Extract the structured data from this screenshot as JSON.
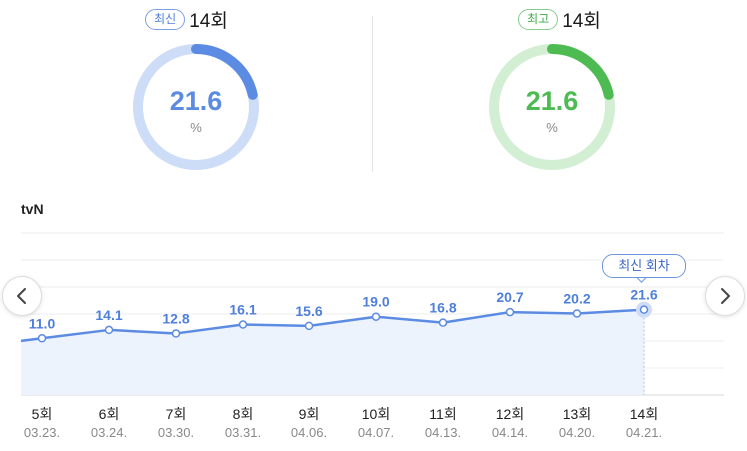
{
  "latest": {
    "badge": "최신",
    "episode": "14회",
    "value": "21.6",
    "unit": "%",
    "ratio": 0.216
  },
  "highest": {
    "badge": "최고",
    "episode": "14회",
    "value": "21.6",
    "unit": "%",
    "ratio": 0.216
  },
  "network": "tvN",
  "latest_tag": "최신 회차",
  "colors": {
    "blue": "#5b8be3",
    "blue_light": "#cddcf7",
    "green": "#4dbb52",
    "green_light": "#d2efd3",
    "area": "#edf3fd",
    "grid": "#ececec"
  },
  "icons": {
    "prev": "chevron-left-icon",
    "next": "chevron-right-icon"
  },
  "chart_data": {
    "type": "line",
    "categories": [
      "5회",
      "6회",
      "7회",
      "8회",
      "9회",
      "10회",
      "11회",
      "12회",
      "13회",
      "14회"
    ],
    "dates": [
      "03.23.",
      "03.24.",
      "03.30.",
      "03.31.",
      "04.06.",
      "04.07.",
      "04.13.",
      "04.14.",
      "04.20.",
      "04.21."
    ],
    "series": [
      {
        "values": [
          11.0,
          14.1,
          12.8,
          16.1,
          15.6,
          19.0,
          16.8,
          20.7,
          20.2,
          21.6
        ]
      }
    ],
    "labels": [
      "11.0",
      "14.1",
      "12.8",
      "16.1",
      "15.6",
      "19.0",
      "16.8",
      "20.7",
      "20.2",
      "21.6"
    ],
    "ylim": [
      -10,
      50
    ],
    "grid": true,
    "area_fill": true,
    "highlight_index": 9
  }
}
